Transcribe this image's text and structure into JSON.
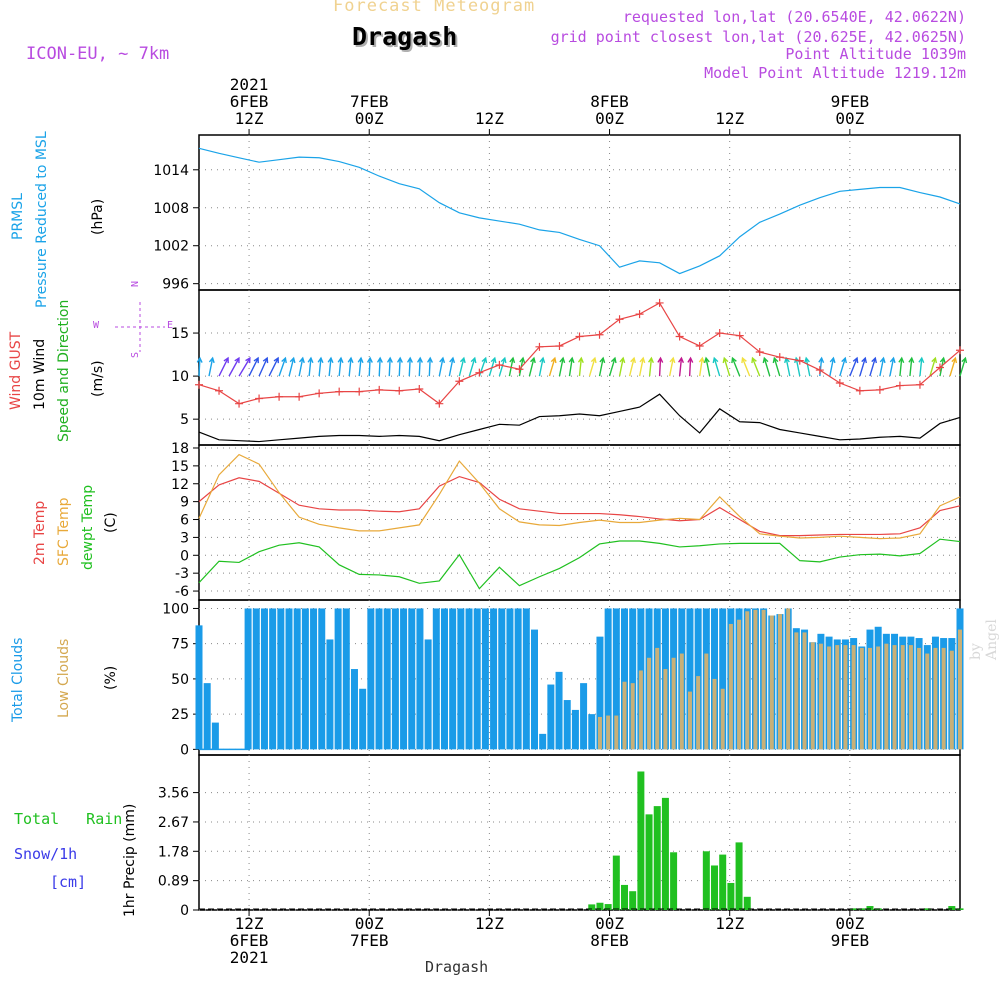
{
  "header": {
    "title": "Forecast Meteogram",
    "location": "Dragash",
    "model": "ICON-EU, ~ 7km",
    "requested": "requested lon,lat (20.6540E, 42.0622N)",
    "grid_point": "grid point closest lon,lat (20.625E, 42.0625N)",
    "point_altitude": "Point Altitude 1039m",
    "model_altitude": "Model Point Altitude 1219.12m",
    "watermark": "by Angel",
    "footer_location": "Dragash"
  },
  "time_axis": {
    "top_ticks": [
      {
        "line1": "2021",
        "line2": "6FEB",
        "line3": "12Z"
      },
      {
        "line1": "",
        "line2": "7FEB",
        "line3": "00Z"
      },
      {
        "line1": "",
        "line2": "",
        "line3": "12Z"
      },
      {
        "line1": "",
        "line2": "8FEB",
        "line3": "00Z"
      },
      {
        "line1": "",
        "line2": "",
        "line3": "12Z"
      },
      {
        "line1": "",
        "line2": "9FEB",
        "line3": "00Z"
      }
    ],
    "bottom_ticks": [
      {
        "line1": "12Z",
        "line2": "6FEB",
        "line3": "2021"
      },
      {
        "line1": "00Z",
        "line2": "7FEB",
        "line3": ""
      },
      {
        "line1": "12Z",
        "line2": "",
        "line3": ""
      },
      {
        "line1": "00Z",
        "line2": "8FEB",
        "line3": ""
      },
      {
        "line1": "12Z",
        "line2": "",
        "line3": ""
      },
      {
        "line1": "00Z",
        "line2": "9FEB",
        "line3": ""
      }
    ],
    "tick_hours": [
      12,
      24,
      36,
      48,
      60,
      72
    ],
    "start_hour": 7,
    "end_hour": 83
  },
  "panels": {
    "pressure": {
      "label1": "PRMSL",
      "label2": "Pressure Reduced to MSL",
      "unit": "(hPa)",
      "color": "#1aa3e8"
    },
    "wind": {
      "label_gust": "Wind GUST",
      "label_wind": "10m Wind",
      "label_speed": "Speed and Direction",
      "unit": "(m/s)",
      "compass_n": "N",
      "compass_s": "S",
      "compass_w": "W",
      "compass_e": "E",
      "compass_color": "#b84be0"
    },
    "temp": {
      "label_2m": "2m Temp",
      "label_sfc": "SFC Temp",
      "label_dew": "dewpt Temp",
      "unit": "(C)"
    },
    "clouds": {
      "label_total": "Total Clouds",
      "label_low": "Low Clouds",
      "unit": "(%)"
    },
    "precip": {
      "label_rain": "Total Rain",
      "label_snow": "Snow/1h",
      "label_cm": "[cm]",
      "unit": "1hr Precip (mm)"
    }
  },
  "chart_data": [
    {
      "type": "line",
      "name": "pressure",
      "ylim": [
        995,
        1019.5
      ],
      "yticks": [
        996,
        1002,
        1008,
        1014
      ],
      "x": [
        7,
        9,
        11,
        13,
        15,
        17,
        19,
        21,
        23,
        25,
        27,
        29,
        31,
        33,
        35,
        37,
        39,
        41,
        43,
        45,
        47,
        49,
        51,
        53,
        55,
        57,
        59,
        61,
        63,
        65,
        67,
        69,
        71,
        73,
        75,
        77,
        79,
        81,
        83
      ],
      "series": [
        {
          "values": [
            1017.4,
            1016.6,
            1015.9,
            1015.2,
            1015.6,
            1016.0,
            1015.9,
            1015.3,
            1014.4,
            1013.0,
            1011.8,
            1011.0,
            1008.8,
            1007.2,
            1006.4,
            1005.9,
            1005.4,
            1004.5,
            1004.1,
            1003.0,
            1002.0,
            998.6,
            999.6,
            999.3,
            997.6,
            998.8,
            1000.4,
            1003.4,
            1005.7,
            1007.0,
            1008.4,
            1009.6,
            1010.6,
            1010.9,
            1011.2,
            1011.2,
            1010.4,
            1009.7,
            1008.6
          ]
        }
      ]
    },
    {
      "type": "line",
      "name": "wind",
      "ylim": [
        2,
        20
      ],
      "yticks": [
        5,
        10,
        15
      ],
      "x": [
        7,
        9,
        11,
        13,
        15,
        17,
        19,
        21,
        23,
        25,
        27,
        29,
        31,
        33,
        35,
        37,
        39,
        41,
        43,
        45,
        47,
        49,
        51,
        53,
        55,
        57,
        59,
        61,
        63,
        65,
        67,
        69,
        71,
        73,
        75,
        77,
        79,
        81,
        83
      ],
      "series": [
        {
          "values": [
            9,
            8.3,
            6.8,
            7.4,
            7.6,
            7.6,
            8,
            8.2,
            8.2,
            8.4,
            8.3,
            8.5,
            6.8,
            9.4,
            10.4,
            11.3,
            10.8,
            13.4,
            13.5,
            14.6,
            14.8,
            16.6,
            17.2,
            18.5,
            14.6,
            13.5,
            15.0,
            14.7,
            12.8,
            12.2,
            11.8,
            10.7,
            9.2,
            8.3,
            8.4,
            8.9,
            9.0,
            11.0,
            13.0
          ],
          "color": "#e84545"
        },
        {
          "values": [
            3.5,
            2.6,
            2.5,
            2.4,
            2.6,
            2.8,
            3.0,
            3.1,
            3.1,
            3.0,
            3.1,
            3.0,
            2.5,
            3.2,
            3.8,
            4.4,
            4.3,
            5.3,
            5.4,
            5.6,
            5.4,
            5.9,
            6.4,
            7.9,
            5.4,
            3.4,
            6.2,
            4.7,
            4.6,
            3.8,
            3.4,
            3.0,
            2.6,
            2.7,
            2.9,
            3.0,
            2.8,
            4.5,
            5.2
          ],
          "color": "#000000"
        }
      ],
      "barb_hours": [
        7,
        8,
        9,
        10,
        11,
        12,
        13,
        14,
        15,
        16,
        17,
        18,
        19,
        20,
        21,
        22,
        23,
        24,
        25,
        26,
        27,
        28,
        29,
        30,
        31,
        32,
        33,
        34,
        35,
        36,
        37,
        38,
        39,
        40,
        41,
        42,
        43,
        44,
        45,
        46,
        47,
        48,
        49,
        50,
        51,
        52,
        53,
        54,
        55,
        56,
        57,
        58,
        59,
        60,
        61,
        62,
        63,
        64,
        65,
        66,
        67,
        68,
        69,
        70,
        71,
        72,
        73,
        74,
        75,
        76,
        77,
        78,
        79,
        80,
        81,
        82,
        83
      ],
      "barb_colors": [
        "#1aa3e8",
        "#1aa3e8",
        "#6f3cf0",
        "#6f3cf0",
        "#6f3cf0",
        "#2e55e8",
        "#2e55e8",
        "#2e55e8",
        "#1aa3e8",
        "#1aa3e8",
        "#1aa3e8",
        "#1aa3e8",
        "#1aa3e8",
        "#1aa3e8",
        "#1aa3e8",
        "#1aa3e8",
        "#1aa3e8",
        "#1aa3e8",
        "#1aa3e8",
        "#1aa3e8",
        "#1aa3e8",
        "#1aa3e8",
        "#1aa3e8",
        "#1aa3e8",
        "#1aa3e8",
        "#1aa3e8",
        "#19c9c4",
        "#19c9c4",
        "#19c9c4",
        "#19c9c4",
        "#19c9c4",
        "#20c040",
        "#20c040",
        "#20c040",
        "#19c9c4",
        "#f0b020",
        "#20c040",
        "#20c040",
        "#a0e020",
        "#f0e040",
        "#20c040",
        "#20c040",
        "#a0e020",
        "#f0e040",
        "#f0e040",
        "#a0e020",
        "#c01890",
        "#f0e040",
        "#c01890",
        "#c01890",
        "#f0e040",
        "#20c040",
        "#19c9c4",
        "#a0e020",
        "#20c040",
        "#f0e040",
        "#a0e020",
        "#20c040",
        "#20c040",
        "#19c9c4",
        "#19c9c4",
        "#19c9c4",
        "#1aa3e8",
        "#1aa3e8",
        "#1aa3e8",
        "#2e55e8",
        "#2e55e8",
        "#2e55e8",
        "#1aa3e8",
        "#1aa3e8",
        "#20c040",
        "#20c040",
        "#19c9c4",
        "#a0e020",
        "#20c040",
        "#f0b020",
        "#20c040"
      ],
      "barb_tilt": [
        0.05,
        0.2,
        0.5,
        0.55,
        0.6,
        0.5,
        0.45,
        0.5,
        0.35,
        0.25,
        0.2,
        0.1,
        0.1,
        0.1,
        0.1,
        0.1,
        0.1,
        0.05,
        0.05,
        0.05,
        0.05,
        0.05,
        0.05,
        0.05,
        0.2,
        0.2,
        0.25,
        0.3,
        0.35,
        0.3,
        0.3,
        0.2,
        0.2,
        0.25,
        0.2,
        0.3,
        0.2,
        0.15,
        0.1,
        0.3,
        0.2,
        0.3,
        0.2,
        0.25,
        0.2,
        0.1,
        0.05,
        0.2,
        0.1,
        0.05,
        0.15,
        -0.2,
        -0.3,
        -0.3,
        -0.4,
        -0.4,
        -0.4,
        -0.3,
        -0.3,
        -0.2,
        -0.2,
        -0.2,
        0.1,
        0.2,
        0.3,
        0.4,
        0.3,
        0.3,
        0.2,
        0.2,
        0.1,
        0.1,
        0.1,
        0.3,
        0.2,
        0.3,
        0.3
      ]
    },
    {
      "type": "line",
      "name": "temperature",
      "ylim": [
        -7.5,
        18.5
      ],
      "yticks": [
        -6,
        -3,
        0,
        3,
        6,
        9,
        12,
        15,
        18
      ],
      "x": [
        7,
        9,
        11,
        13,
        15,
        17,
        19,
        21,
        23,
        25,
        27,
        29,
        31,
        33,
        35,
        37,
        39,
        41,
        43,
        45,
        47,
        49,
        51,
        53,
        55,
        57,
        59,
        61,
        63,
        65,
        67,
        69,
        71,
        73,
        75,
        77,
        79,
        81,
        83
      ],
      "series": [
        {
          "values": [
            9,
            11.8,
            13.0,
            12.4,
            10.4,
            8.4,
            7.8,
            7.6,
            7.6,
            7.4,
            7.3,
            7.8,
            11.6,
            13.2,
            12.2,
            9.4,
            7.8,
            7.4,
            7.0,
            7.0,
            7.0,
            6.8,
            6.5,
            6.1,
            5.8,
            6.0,
            8.0,
            6.0,
            4.0,
            3.3,
            3.3,
            3.4,
            3.5,
            3.5,
            3.5,
            3.6,
            4.6,
            7.5,
            8.3
          ],
          "color": "#e84545"
        },
        {
          "values": [
            6.2,
            13.5,
            16.9,
            15.3,
            10.5,
            6.4,
            5.2,
            4.6,
            4.1,
            4.1,
            4.6,
            5.1,
            10.2,
            15.8,
            12.1,
            7.8,
            5.6,
            5.1,
            5.0,
            5.5,
            5.9,
            5.5,
            5.5,
            5.9,
            6.2,
            6.0,
            9.8,
            6.5,
            3.6,
            3.2,
            2.9,
            3.0,
            3.2,
            3.0,
            2.8,
            2.9,
            3.6,
            8.3,
            9.8
          ],
          "color": "#e8a93a"
        },
        {
          "values": [
            -4.6,
            -1.0,
            -1.2,
            0.6,
            1.7,
            2.1,
            1.4,
            -1.6,
            -3.2,
            -3.3,
            -3.6,
            -4.7,
            -4.3,
            0.1,
            -5.6,
            -2.0,
            -5.1,
            -3.6,
            -2.2,
            -0.4,
            1.9,
            2.4,
            2.4,
            2.0,
            1.4,
            1.6,
            1.9,
            2.0,
            2.0,
            2.0,
            -0.9,
            -1.1,
            -0.3,
            0.1,
            0.2,
            -0.1,
            0.3,
            2.7,
            2.3
          ],
          "color": "#20c020"
        }
      ]
    },
    {
      "type": "bar",
      "name": "clouds",
      "ylim": [
        -4,
        106
      ],
      "yticks": [
        0,
        25,
        50,
        75,
        100
      ],
      "x_start": 7,
      "series": [
        {
          "name": "total",
          "color": "#1a9be8",
          "values": [
            88,
            47,
            19,
            0,
            0,
            0,
            100,
            100,
            100,
            100,
            100,
            100,
            100,
            100,
            100,
            100,
            78,
            100,
            100,
            57,
            43,
            100,
            100,
            100,
            100,
            100,
            100,
            100,
            78,
            100,
            100,
            100,
            100,
            100,
            100,
            100,
            100,
            100,
            100,
            100,
            100,
            85,
            11,
            46,
            55,
            35,
            28,
            47,
            25,
            80,
            100,
            100,
            100,
            100,
            100,
            100,
            100,
            100,
            100,
            100,
            100,
            100,
            100,
            100,
            100,
            100,
            100,
            100,
            100,
            100,
            95,
            96,
            100,
            86,
            85,
            76,
            82,
            80,
            78,
            78,
            79,
            73,
            85,
            87,
            82,
            82,
            80,
            80,
            79,
            74,
            80,
            79,
            79,
            100
          ]
        },
        {
          "name": "low",
          "color": "#c8b078",
          "values": [
            0,
            0,
            0,
            0,
            0,
            0,
            0,
            0,
            0,
            0,
            0,
            0,
            0,
            0,
            0,
            0,
            0,
            0,
            0,
            0,
            0,
            0,
            0,
            0,
            0,
            0,
            0,
            0,
            0,
            0,
            0,
            0,
            0,
            0,
            0,
            0,
            0,
            0,
            0,
            0,
            0,
            0,
            0,
            0,
            0,
            0,
            0,
            0,
            0,
            23,
            24,
            24,
            48,
            47,
            56,
            65,
            72,
            57,
            65,
            68,
            41,
            52,
            68,
            50,
            43,
            89,
            92,
            98,
            99,
            99,
            95,
            96,
            100,
            83,
            83,
            76,
            75,
            73,
            74,
            74,
            74,
            72,
            72,
            73,
            75,
            74,
            74,
            74,
            72,
            68,
            72,
            72,
            70,
            85
          ]
        }
      ]
    },
    {
      "type": "bar",
      "name": "precip",
      "ylim": [
        0,
        4.7
      ],
      "yticks": [
        0,
        0.89,
        1.78,
        2.67,
        3.56
      ],
      "x_start": 7,
      "series": [
        {
          "name": "rain",
          "color": "#20c020",
          "values": [
            0,
            0,
            0,
            0,
            0,
            0,
            0,
            0,
            0,
            0,
            0,
            0,
            0,
            0,
            0,
            0,
            0,
            0,
            0,
            0,
            0,
            0,
            0,
            0,
            0,
            0,
            0,
            0,
            0,
            0,
            0,
            0,
            0,
            0,
            0,
            0,
            0,
            0,
            0,
            0,
            0,
            0,
            0,
            0,
            0,
            0,
            0,
            0,
            0.17,
            0.22,
            0.18,
            1.65,
            0.76,
            0.57,
            4.2,
            2.9,
            3.15,
            3.4,
            1.75,
            0,
            0,
            0,
            1.78,
            1.35,
            1.68,
            0.82,
            2.05,
            0.4,
            0,
            0,
            0,
            0,
            0,
            0,
            0,
            0,
            0,
            0,
            0,
            0,
            0.05,
            0.05,
            0.12,
            0.05,
            0,
            0,
            0,
            0,
            0,
            0.05,
            0,
            0,
            0.12,
            0.05
          ]
        }
      ]
    }
  ]
}
